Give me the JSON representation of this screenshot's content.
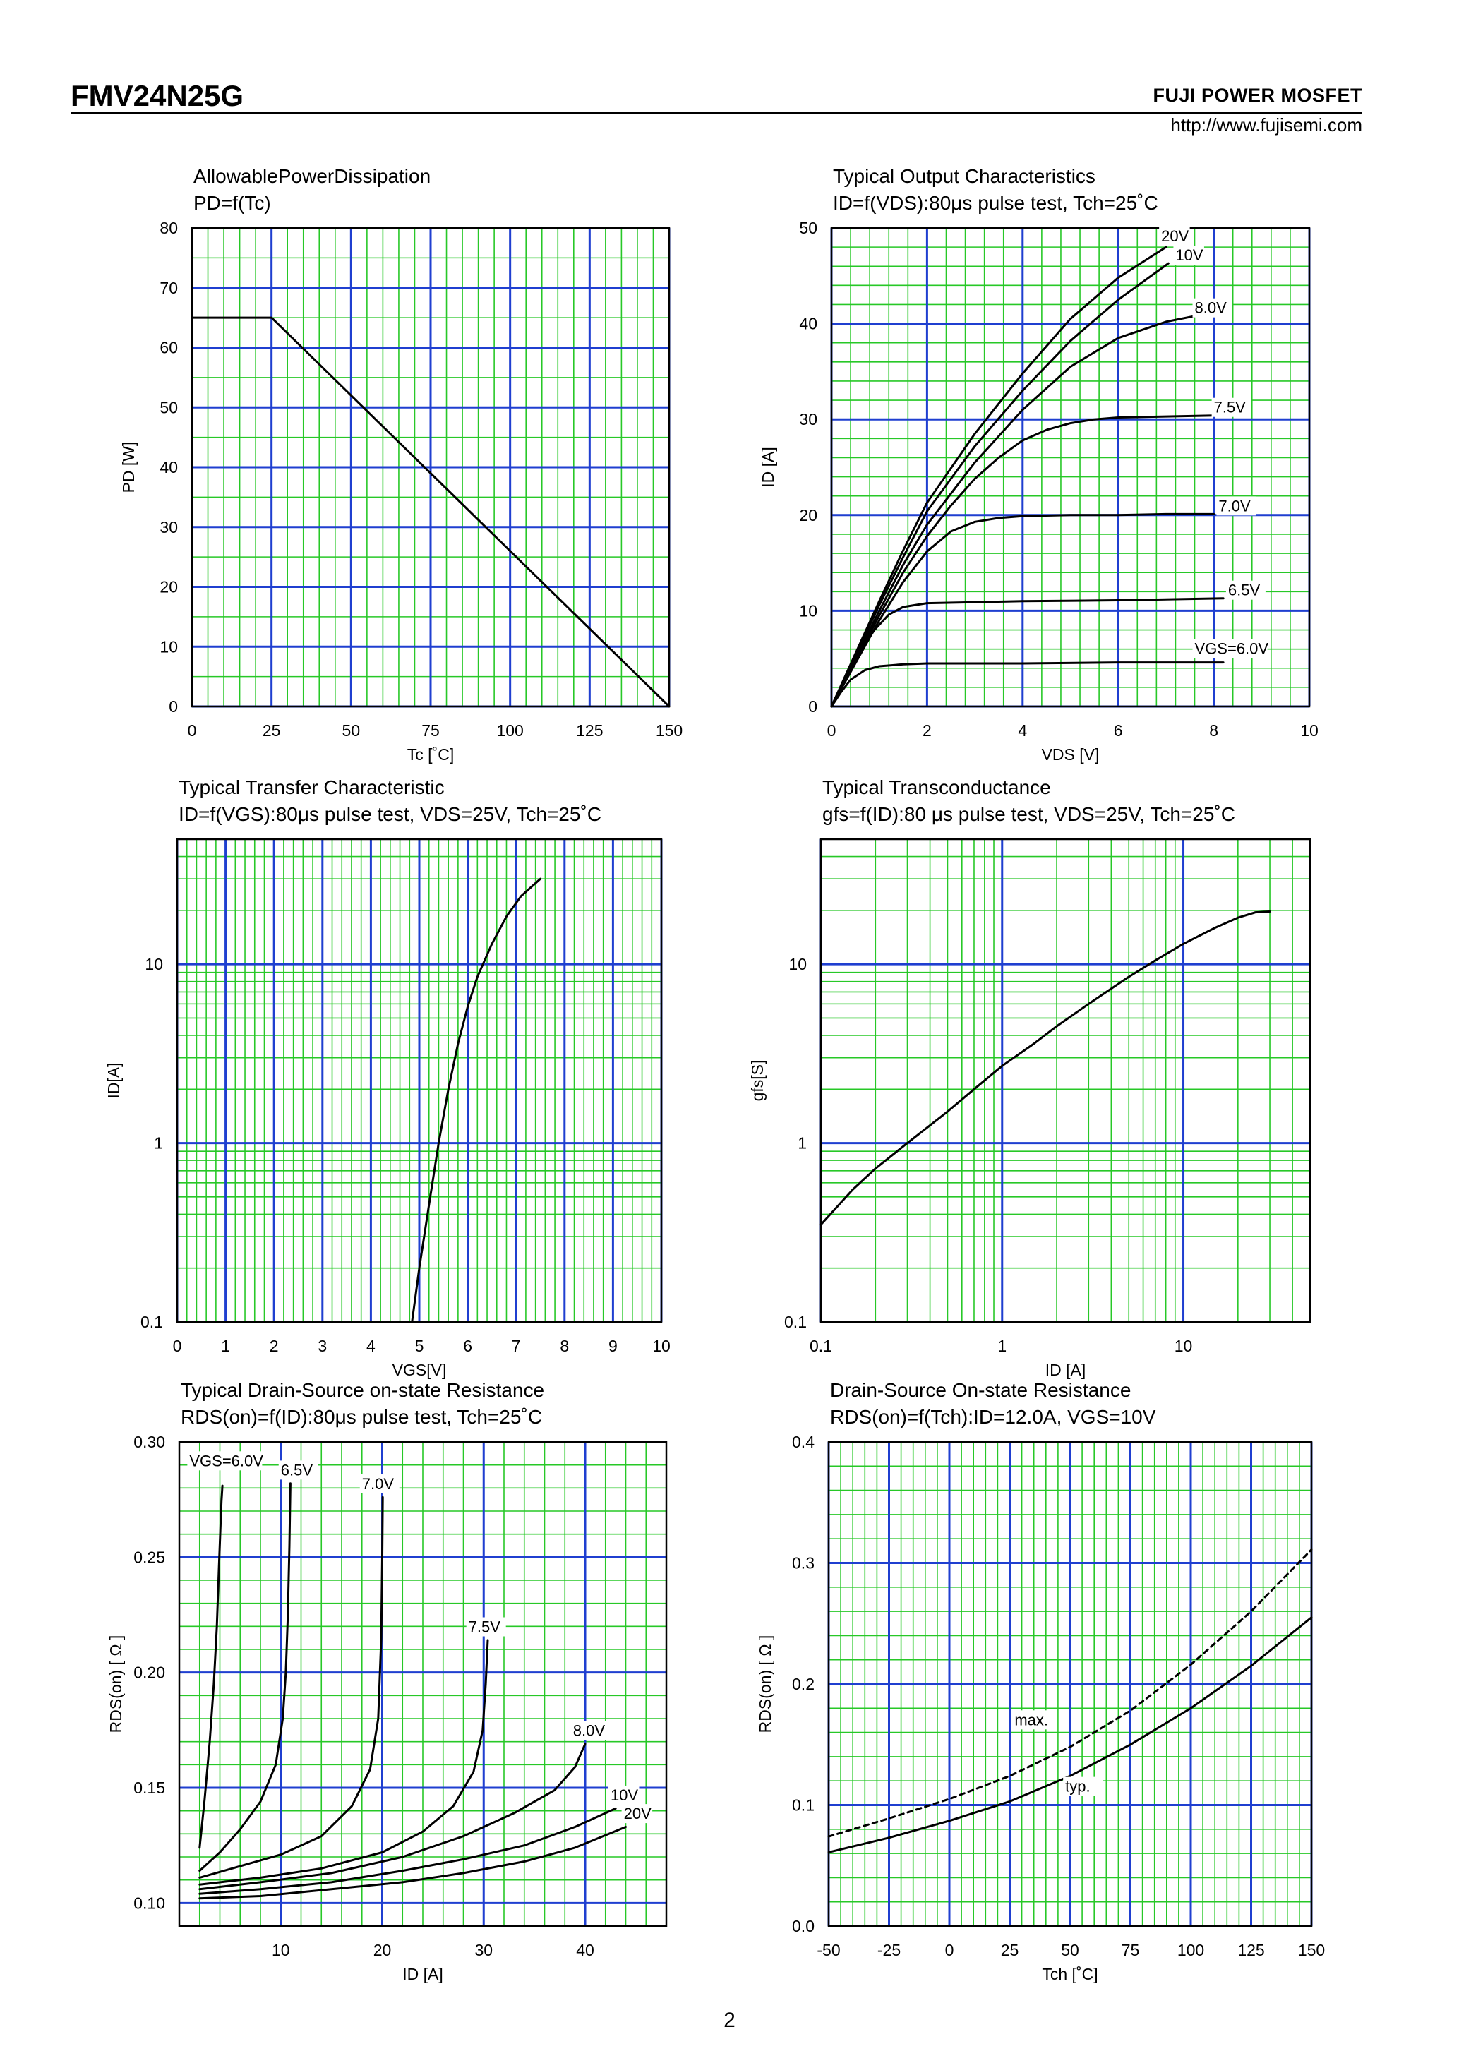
{
  "header": {
    "part_number": "FMV24N25G",
    "brand": "FUJI POWER MOSFET",
    "url": "http://www.fujisemi.com"
  },
  "page_number": "2",
  "colors": {
    "major_grid": "#1f3fd0",
    "minor_grid": "#27c827",
    "curve": "#000000"
  },
  "chart_data": [
    {
      "id": "pd",
      "type": "line",
      "title": [
        "AllowablePowerDissipation",
        "PD=f(Tc)"
      ],
      "xlabel": "Tc [˚C]",
      "ylabel": "PD [W]",
      "xscale": "linear",
      "yscale": "linear",
      "xlim": [
        0,
        150
      ],
      "ylim": [
        0,
        80
      ],
      "xticks": [
        0,
        25,
        50,
        75,
        100,
        125,
        150
      ],
      "xtick_labels": [
        "0",
        "25",
        "50",
        "75",
        "100",
        "125",
        "150"
      ],
      "yticks": [
        0,
        10,
        20,
        30,
        40,
        50,
        60,
        70,
        80
      ],
      "ytick_labels": [
        "0",
        "10",
        "20",
        "30",
        "40",
        "50",
        "60",
        "70",
        "80"
      ],
      "x_minor": 5,
      "y_minor": 2,
      "series": [
        {
          "name": "",
          "dashed": false,
          "x": [
            0,
            25,
            150
          ],
          "y": [
            65,
            65,
            0
          ]
        }
      ],
      "annotations": []
    },
    {
      "id": "output",
      "type": "line",
      "title": [
        "Typical Output Characteristics",
        "ID=f(VDS):80μs pulse test, Tch=25˚C"
      ],
      "xlabel": "VDS [V]",
      "ylabel": "ID [A]",
      "xscale": "linear",
      "yscale": "linear",
      "xlim": [
        0,
        10
      ],
      "ylim": [
        0,
        50
      ],
      "xticks": [
        0,
        2,
        4,
        6,
        8,
        10
      ],
      "xtick_labels": [
        "0",
        "2",
        "4",
        "6",
        "8",
        "10"
      ],
      "yticks": [
        0,
        10,
        20,
        30,
        40,
        50
      ],
      "ytick_labels": [
        "0",
        "10",
        "20",
        "30",
        "40",
        "50"
      ],
      "x_minor": 5,
      "y_minor": 5,
      "series": [
        {
          "name": "20V",
          "dashed": false,
          "x": [
            0,
            0.5,
            1,
            1.5,
            2,
            3,
            4,
            5,
            6,
            7.0
          ],
          "y": [
            0,
            5.5,
            11,
            16.3,
            21.3,
            28.5,
            34.8,
            40.5,
            44.8,
            48.0
          ]
        },
        {
          "name": "10V",
          "dashed": false,
          "x": [
            0,
            0.5,
            1,
            1.5,
            2,
            3,
            4,
            5,
            6,
            7.05
          ],
          "y": [
            0,
            5.3,
            10.6,
            15.6,
            20.4,
            27.2,
            33.0,
            38.2,
            42.5,
            46.3
          ]
        },
        {
          "name": "8.0V",
          "dashed": false,
          "x": [
            0,
            0.5,
            1,
            1.5,
            2,
            3,
            4,
            5,
            6,
            7,
            7.6
          ],
          "y": [
            0,
            5.0,
            10.0,
            14.8,
            19.0,
            25.5,
            31.0,
            35.5,
            38.5,
            40.2,
            40.8
          ]
        },
        {
          "name": "7.5V",
          "dashed": false,
          "x": [
            0,
            0.5,
            1,
            1.5,
            2,
            2.5,
            3,
            3.5,
            4,
            4.5,
            5,
            5.5,
            6,
            7,
            8.0
          ],
          "y": [
            0,
            4.8,
            9.5,
            14.0,
            17.8,
            21.0,
            23.8,
            26.0,
            27.8,
            28.9,
            29.6,
            30.0,
            30.2,
            30.3,
            30.4
          ]
        },
        {
          "name": "7.0V",
          "dashed": false,
          "x": [
            0,
            0.5,
            1,
            1.5,
            2,
            2.5,
            3,
            3.5,
            4,
            5,
            6,
            7,
            8.0
          ],
          "y": [
            0,
            4.5,
            9.0,
            13.0,
            16.2,
            18.3,
            19.3,
            19.7,
            19.9,
            20.0,
            20.0,
            20.1,
            20.1
          ]
        },
        {
          "name": "6.5V",
          "dashed": false,
          "x": [
            0,
            0.3,
            0.6,
            0.9,
            1.2,
            1.5,
            2,
            3,
            4,
            6,
            8.2
          ],
          "y": [
            0,
            3.0,
            5.8,
            8.0,
            9.6,
            10.4,
            10.8,
            10.9,
            11.0,
            11.1,
            11.3
          ]
        },
        {
          "name": "VGS=6.0V",
          "dashed": false,
          "x": [
            0,
            0.2,
            0.4,
            0.7,
            1.0,
            1.5,
            2,
            3,
            4,
            6,
            8.2
          ],
          "y": [
            0,
            1.5,
            2.8,
            3.8,
            4.2,
            4.4,
            4.5,
            4.5,
            4.5,
            4.6,
            4.6
          ]
        }
      ],
      "annotations": [
        {
          "text": "20V",
          "x": 6.9,
          "y": 48.6
        },
        {
          "text": "10V",
          "x": 7.2,
          "y": 46.6
        },
        {
          "text": "8.0V",
          "x": 7.6,
          "y": 41.1
        },
        {
          "text": "7.5V",
          "x": 8.0,
          "y": 30.7
        },
        {
          "text": "7.0V",
          "x": 8.1,
          "y": 20.4
        },
        {
          "text": "6.5V",
          "x": 8.3,
          "y": 11.6
        },
        {
          "text": "VGS=6.0V",
          "x": 7.6,
          "y": 5.5
        }
      ]
    },
    {
      "id": "transfer",
      "type": "line",
      "title": [
        "Typical Transfer Characteristic",
        "ID=f(VGS):80μs pulse test, VDS=25V, Tch=25˚C"
      ],
      "xlabel": "VGS[V]",
      "ylabel": "ID[A]",
      "xscale": "linear",
      "yscale": "log",
      "xlim": [
        0,
        10
      ],
      "ylim": [
        0.1,
        50
      ],
      "xticks": [
        0,
        1,
        2,
        3,
        4,
        5,
        6,
        7,
        8,
        9,
        10
      ],
      "xtick_labels": [
        "0",
        "1",
        "2",
        "3",
        "4",
        "5",
        "6",
        "7",
        "8",
        "9",
        "10"
      ],
      "yticks": [
        0.1,
        1,
        10
      ],
      "ytick_labels": [
        "0.1",
        "1",
        "10"
      ],
      "x_minor": 5,
      "series": [
        {
          "name": "",
          "dashed": false,
          "x": [
            4.85,
            5.0,
            5.2,
            5.4,
            5.6,
            5.8,
            6.0,
            6.2,
            6.5,
            6.8,
            7.1,
            7.5
          ],
          "y": [
            0.1,
            0.2,
            0.45,
            1.0,
            2.0,
            3.6,
            5.8,
            8.5,
            13.0,
            18.5,
            24.0,
            30.0
          ]
        }
      ],
      "annotations": []
    },
    {
      "id": "gfs",
      "type": "line",
      "title": [
        "Typical Transconductance",
        "gfs=f(ID):80 μs pulse test, VDS=25V, Tch=25˚C"
      ],
      "xlabel": "ID [A]",
      "ylabel": "gfs[S]",
      "xscale": "log",
      "yscale": "log",
      "xlim": [
        0.1,
        50
      ],
      "ylim": [
        0.1,
        50
      ],
      "xticks": [
        0.1,
        1,
        10
      ],
      "xtick_labels": [
        "0.1",
        "1",
        "10"
      ],
      "yticks": [
        0.1,
        1,
        10
      ],
      "ytick_labels": [
        "0.1",
        "1",
        "10"
      ],
      "series": [
        {
          "name": "",
          "dashed": false,
          "x": [
            0.1,
            0.15,
            0.2,
            0.3,
            0.5,
            0.7,
            1,
            1.5,
            2,
            3,
            5,
            7,
            10,
            15,
            20,
            25,
            30
          ],
          "y": [
            0.35,
            0.55,
            0.72,
            1.0,
            1.5,
            2.0,
            2.7,
            3.6,
            4.5,
            6.0,
            8.5,
            10.5,
            13.0,
            16.0,
            18.2,
            19.5,
            19.7
          ]
        }
      ],
      "annotations": []
    },
    {
      "id": "rds_id",
      "type": "line",
      "title": [
        "Typical Drain-Source on-state Resistance",
        "RDS(on)=f(ID):80μs pulse test, Tch=25˚C"
      ],
      "xlabel": "ID [A]",
      "ylabel": "RDS(on) [ Ω ]",
      "xscale": "linear",
      "yscale": "linear",
      "xlim": [
        0,
        48
      ],
      "ylim": [
        0.09,
        0.3
      ],
      "xticks": [
        10,
        20,
        30,
        40
      ],
      "xtick_labels": [
        "10",
        "20",
        "30",
        "40"
      ],
      "yticks": [
        0.1,
        0.15,
        0.2,
        0.25,
        0.3
      ],
      "ytick_labels": [
        "0.10",
        "0.15",
        "0.20",
        "0.25",
        "0.30"
      ],
      "x_minor": 5,
      "y_minor": 5,
      "series": [
        {
          "name": "VGS=6.0V",
          "dashed": false,
          "x": [
            2,
            2.5,
            3,
            3.4,
            3.7,
            3.9,
            4.05,
            4.15,
            4.25
          ],
          "y": [
            0.124,
            0.145,
            0.17,
            0.195,
            0.22,
            0.245,
            0.262,
            0.274,
            0.281
          ]
        },
        {
          "name": "6.5V",
          "dashed": false,
          "x": [
            2,
            4,
            6,
            8,
            9.5,
            10.2,
            10.5,
            10.7,
            10.85,
            10.95
          ],
          "y": [
            0.114,
            0.122,
            0.132,
            0.144,
            0.16,
            0.18,
            0.2,
            0.225,
            0.255,
            0.282
          ]
        },
        {
          "name": "7.0V",
          "dashed": false,
          "x": [
            2,
            6,
            10,
            14,
            17,
            18.8,
            19.6,
            19.9,
            20.0,
            20.05
          ],
          "y": [
            0.111,
            0.116,
            0.121,
            0.129,
            0.142,
            0.158,
            0.18,
            0.215,
            0.25,
            0.276
          ]
        },
        {
          "name": "7.5V",
          "dashed": false,
          "x": [
            2,
            8,
            14,
            20,
            24,
            27,
            29,
            29.9,
            30.2,
            30.4
          ],
          "y": [
            0.108,
            0.111,
            0.115,
            0.122,
            0.131,
            0.142,
            0.157,
            0.175,
            0.195,
            0.214
          ]
        },
        {
          "name": "8.0V",
          "dashed": false,
          "x": [
            2,
            8,
            15,
            22,
            28,
            33,
            37,
            39,
            40.0
          ],
          "y": [
            0.106,
            0.109,
            0.113,
            0.12,
            0.129,
            0.139,
            0.149,
            0.159,
            0.169
          ]
        },
        {
          "name": "10V",
          "dashed": false,
          "x": [
            2,
            8,
            15,
            22,
            28,
            34,
            39,
            43.0
          ],
          "y": [
            0.104,
            0.106,
            0.109,
            0.114,
            0.119,
            0.125,
            0.133,
            0.141
          ]
        },
        {
          "name": "20V",
          "dashed": false,
          "x": [
            2,
            8,
            15,
            22,
            28,
            34,
            39,
            44.0
          ],
          "y": [
            0.102,
            0.103,
            0.106,
            0.109,
            0.113,
            0.118,
            0.124,
            0.133
          ]
        }
      ],
      "annotations": [
        {
          "text": "VGS=6.0V",
          "x": 1.0,
          "y": 0.2895
        },
        {
          "text": "6.5V",
          "x": 10.0,
          "y": 0.2855
        },
        {
          "text": "7.0V",
          "x": 18.0,
          "y": 0.2795
        },
        {
          "text": "7.5V",
          "x": 28.5,
          "y": 0.2175
        },
        {
          "text": "8.0V",
          "x": 38.8,
          "y": 0.1725
        },
        {
          "text": "10V",
          "x": 42.5,
          "y": 0.1445
        },
        {
          "text": "20V",
          "x": 43.8,
          "y": 0.1365
        }
      ]
    },
    {
      "id": "rds_tch",
      "type": "line",
      "title": [
        "Drain-Source On-state Resistance",
        "RDS(on)=f(Tch):ID=12.0A, VGS=10V"
      ],
      "xlabel": "Tch [˚C]",
      "ylabel": "RDS(on) [ Ω ]",
      "xscale": "linear",
      "yscale": "linear",
      "xlim": [
        -50,
        150
      ],
      "ylim": [
        0.0,
        0.4
      ],
      "xticks": [
        -50,
        -25,
        0,
        25,
        50,
        75,
        100,
        125,
        150
      ],
      "xtick_labels": [
        "-50",
        "-25",
        "0",
        "25",
        "50",
        "75",
        "100",
        "125",
        "150"
      ],
      "yticks": [
        0.0,
        0.1,
        0.2,
        0.3,
        0.4
      ],
      "ytick_labels": [
        "0.0",
        "0.1",
        "0.2",
        "0.3",
        "0.4"
      ],
      "x_minor": 5,
      "y_minor": 5,
      "series": [
        {
          "name": "max.",
          "dashed": true,
          "x": [
            -50,
            -25,
            0,
            25,
            50,
            75,
            100,
            125,
            150
          ],
          "y": [
            0.074,
            0.089,
            0.105,
            0.124,
            0.148,
            0.178,
            0.216,
            0.26,
            0.311
          ]
        },
        {
          "name": "typ.",
          "dashed": false,
          "x": [
            -50,
            -25,
            0,
            25,
            50,
            75,
            100,
            125,
            150
          ],
          "y": [
            0.061,
            0.073,
            0.087,
            0.103,
            0.124,
            0.15,
            0.18,
            0.215,
            0.255
          ]
        }
      ],
      "annotations": [
        {
          "text": "max.",
          "x": 27.0,
          "y": 0.166
        },
        {
          "text": "typ.",
          "x": 48.0,
          "y": 0.111
        }
      ]
    }
  ]
}
